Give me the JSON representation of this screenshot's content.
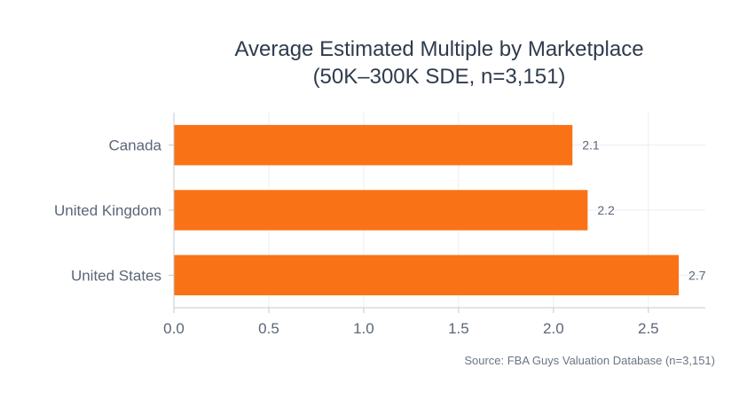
{
  "chart_data": {
    "type": "bar",
    "orientation": "horizontal",
    "title_lines": [
      "Average Estimated Multiple by Marketplace",
      "(50K–300K SDE, n=3,151)"
    ],
    "categories": [
      "Canada",
      "United Kingdom",
      "United States"
    ],
    "values": [
      2.1,
      2.18,
      2.66
    ],
    "value_labels": [
      "2.1",
      "2.2",
      "2.7"
    ],
    "xlim": [
      0,
      2.8
    ],
    "xticks": [
      0,
      0.5,
      1,
      1.5,
      2,
      2.5
    ],
    "xtick_labels": [
      "0.0",
      "0.5",
      "1.0",
      "1.5",
      "2.0",
      "2.5"
    ],
    "grid": true,
    "xlabel": "",
    "ylabel": "",
    "bar_color": "#f97316",
    "source": "Source: FBA Guys Valuation Database (n=3,151)"
  }
}
